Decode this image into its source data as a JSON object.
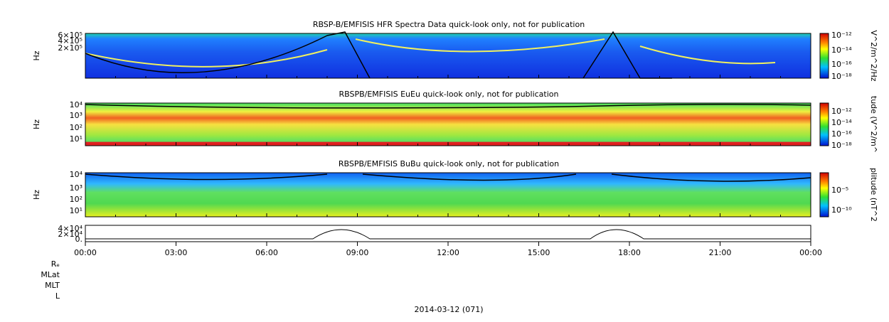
{
  "panels": [
    {
      "title": "RBSP-B/EMFISIS  HFR Spectra Data quick-look only, not for publication",
      "y_label": "Hz",
      "y_ticks": [
        "6×10⁵",
        "4×10⁵",
        "2×10⁵"
      ],
      "colorbar": {
        "label": "V^2/m^2/Hz",
        "ticks": [
          "10⁻¹²",
          "10⁻¹⁴",
          "10⁻¹⁶",
          "10⁻¹⁸"
        ]
      }
    },
    {
      "title": "RBSPB/EMFISIS  EuEu quick-look only, not for publication",
      "y_label": "Hz",
      "y_ticks": [
        "10⁴",
        "10³",
        "10²",
        "10¹"
      ],
      "colorbar": {
        "label": "tude (V^2/m^",
        "ticks": [
          "10⁻¹²",
          "10⁻¹⁴",
          "10⁻¹⁶",
          "10⁻¹⁸"
        ]
      }
    },
    {
      "title": "RBSPB/EMFISIS  BuBu quick-look only, not for publication",
      "y_label": "Hz",
      "y_ticks": [
        "10⁴",
        "10³",
        "10²",
        "10¹"
      ],
      "colorbar": {
        "label": "plitude (nT^2",
        "ticks": [
          "10⁻⁵",
          "10⁻¹⁰"
        ]
      }
    }
  ],
  "line_panel": {
    "y_ticks": [
      "4×10⁴",
      "2×10⁴",
      "0."
    ]
  },
  "x_ticks": [
    "00:00",
    "03:00",
    "06:00",
    "09:00",
    "12:00",
    "15:00",
    "18:00",
    "21:00",
    "00:00"
  ],
  "ephemeris_labels": [
    "Rₑ",
    "MLat",
    "MLT",
    "L"
  ],
  "date": "2014-03-12 (071)"
}
